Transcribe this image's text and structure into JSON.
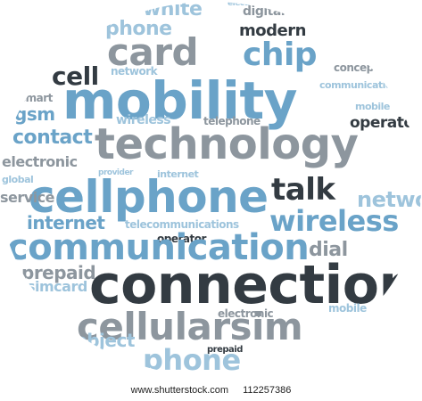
{
  "words": {
    "white": "white",
    "digital": "digital",
    "electronic_top": "electronic",
    "phone_top": "phone",
    "card": "card",
    "modern": "modern",
    "chip": "chip",
    "cell": "cell",
    "network": "network",
    "concept": "concept",
    "mobility": "mobility",
    "smart": "smart",
    "communication_small": "communication",
    "gsm": "gsm",
    "wireless_small": "wireless",
    "telephone": "telephone",
    "operator_small": "operator",
    "mobile": "mobile",
    "contact": "contact",
    "technology": "technology",
    "electronic_left": "electronic",
    "cellphone": "cellphone",
    "talk": "talk",
    "internet_small": "internet",
    "service": "service",
    "network_right": "network",
    "internet": "internet",
    "telecommunications": "telecommunications",
    "wireless": "wireless",
    "communication": "communication",
    "operator": "operator",
    "dial": "dial",
    "prepaid": "prepaid",
    "simcard": "simcard",
    "connection": "connection",
    "mobile_right": "mobile",
    "electronic_bottom": "electronic",
    "cellularsim": "cellularsim",
    "object": "object",
    "prepaid_bottom": "prepaid",
    "phone": "phone",
    "global": "global",
    "provider": "provider"
  },
  "footer": {
    "site": "www.shutterstock.com",
    "id": "112257386"
  }
}
